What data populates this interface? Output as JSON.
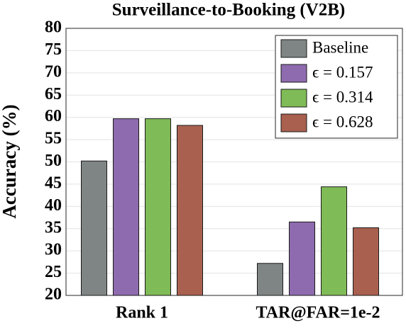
{
  "chart_data": {
    "type": "bar",
    "title": "Surveillance-to-Booking (V2B)",
    "y_label": "Accuracy (%)",
    "categories": [
      "Rank 1",
      "TAR@FAR=1e-2"
    ],
    "series": [
      {
        "name": "Baseline",
        "color": "#7f8584",
        "values": [
          50.2,
          27.2
        ]
      },
      {
        "name": "ϵ = 0.157",
        "color": "#8e6bae",
        "values": [
          59.7,
          36.5
        ]
      },
      {
        "name": "ϵ = 0.314",
        "color": "#7fbb56",
        "values": [
          59.7,
          44.4
        ]
      },
      {
        "name": "ϵ = 0.628",
        "color": "#a9604f",
        "values": [
          58.2,
          35.2
        ]
      }
    ],
    "ylim": [
      20,
      80
    ],
    "yticks": [
      20,
      25,
      30,
      35,
      40,
      45,
      50,
      55,
      60,
      65,
      70,
      75,
      80
    ],
    "grid": true,
    "legend": "top-right"
  }
}
